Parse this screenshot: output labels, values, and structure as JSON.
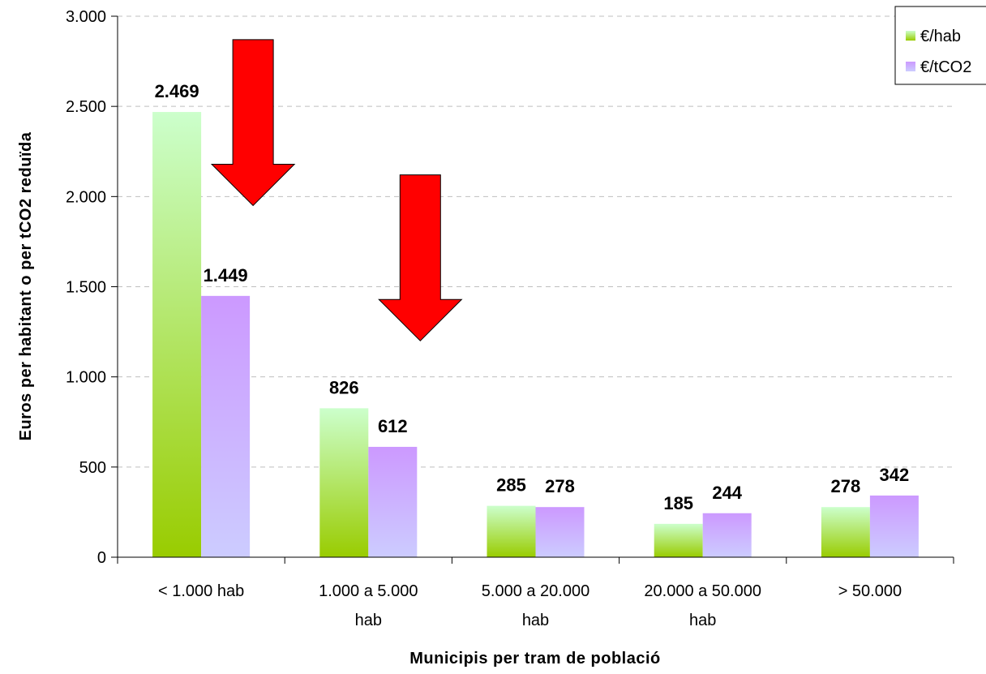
{
  "chart_data": {
    "type": "bar",
    "categories": [
      [
        "< 1.000 hab"
      ],
      [
        "1.000 a 5.000",
        "hab"
      ],
      [
        "5.000 a 20.000",
        "hab"
      ],
      [
        "20.000 a 50.000",
        "hab"
      ],
      [
        "> 50.000"
      ]
    ],
    "series": [
      {
        "name": "€/hab",
        "values": [
          2469,
          826,
          285,
          185,
          278
        ],
        "labels": [
          "2.469",
          "826",
          "285",
          "185",
          "278"
        ],
        "color_top": "#ccffcc",
        "color_bottom": "#99cc00"
      },
      {
        "name": "€/tCO2",
        "values": [
          1449,
          612,
          278,
          244,
          342
        ],
        "labels": [
          "1.449",
          "612",
          "278",
          "244",
          "342"
        ],
        "color_top": "#cc99ff",
        "color_bottom": "#ccccff"
      }
    ],
    "xlabel": "Municipis per tram de població",
    "ylabel": "Euros per habitant o per tCO2 reduïda",
    "ylim": [
      0,
      3000
    ],
    "yticks": [
      0,
      500,
      1000,
      1500,
      2000,
      2500,
      3000
    ],
    "ytick_labels": [
      "0",
      "500",
      "1.000",
      "1.500",
      "2.000",
      "2.500",
      "3.000"
    ],
    "grid": true,
    "legend": "top-right",
    "annotations": [
      {
        "type": "down-arrow",
        "color": "#ff0000",
        "tip_x_category": 0,
        "tip_value": 1950,
        "tail_value": 2870
      },
      {
        "type": "down-arrow",
        "color": "#ff0000",
        "tip_x_category": 1,
        "tip_value": 1200,
        "tail_value": 2120
      }
    ]
  }
}
